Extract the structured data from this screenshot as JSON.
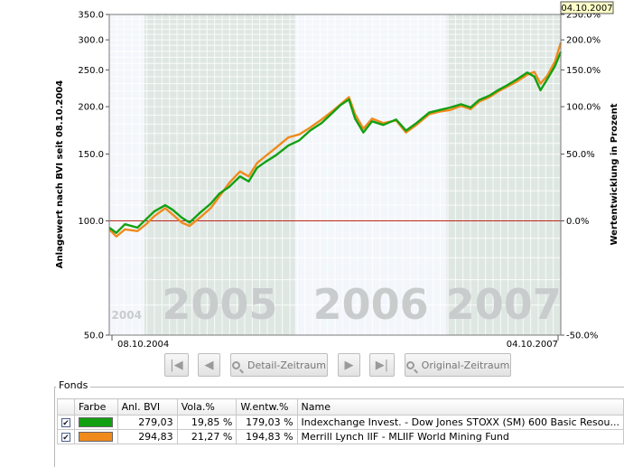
{
  "chart_data": {
    "type": "line",
    "y_scale": "log",
    "ylabel_left": "Anlagewert nach BVI seit 08.10.2004",
    "ylabel_right": "Wertentwicklung in Prozent",
    "left_ticks": [
      {
        "value": 350,
        "label": "350.0"
      },
      {
        "value": 300,
        "label": "300.0"
      },
      {
        "value": 250,
        "label": "250.0"
      },
      {
        "value": 200,
        "label": "200.0"
      },
      {
        "value": 150,
        "label": "150.0"
      },
      {
        "value": 100,
        "label": "100.0"
      },
      {
        "value": 50,
        "label": "50.0"
      }
    ],
    "right_ticks": [
      {
        "value": 350,
        "label": "250.0%"
      },
      {
        "value": 300,
        "label": "200.0%"
      },
      {
        "value": 250,
        "label": "150.0%"
      },
      {
        "value": 200,
        "label": "100.0%"
      },
      {
        "value": 150,
        "label": "50.0%"
      },
      {
        "value": 100,
        "label": "0.0%"
      },
      {
        "value": 50,
        "label": "-50.0%"
      }
    ],
    "ylim": [
      50,
      350
    ],
    "xlim": [
      "2004-10-08",
      "2007-10-04"
    ],
    "x_labels": [
      "08.10.2004",
      "04.10.2007"
    ],
    "cursor_label": "04.10.2007",
    "baseline": 100,
    "year_bands": [
      {
        "label": "2004",
        "start": "2004-10-08",
        "end": "2004-12-31",
        "shaded": false
      },
      {
        "label": "2005",
        "start": "2005-01-01",
        "end": "2005-12-31",
        "shaded": true
      },
      {
        "label": "2006",
        "start": "2006-01-01",
        "end": "2006-12-31",
        "shaded": false
      },
      {
        "label": "2007",
        "start": "2007-01-01",
        "end": "2007-10-04",
        "shaded": true
      }
    ],
    "series": [
      {
        "color": "#12a012",
        "x": [
          "2004-10-08",
          "2004-10-25",
          "2004-11-15",
          "2004-12-15",
          "2005-01-05",
          "2005-01-25",
          "2005-02-20",
          "2005-03-10",
          "2005-04-01",
          "2005-04-20",
          "2005-05-15",
          "2005-06-10",
          "2005-07-01",
          "2005-07-25",
          "2005-08-20",
          "2005-09-10",
          "2005-09-30",
          "2005-10-20",
          "2005-11-15",
          "2005-12-15",
          "2006-01-10",
          "2006-02-05",
          "2006-03-05",
          "2006-04-01",
          "2006-04-20",
          "2006-05-10",
          "2006-05-25",
          "2006-06-14",
          "2006-07-05",
          "2006-08-01",
          "2006-09-01",
          "2006-09-25",
          "2006-10-20",
          "2006-11-20",
          "2006-12-15",
          "2007-01-10",
          "2007-02-05",
          "2007-02-28",
          "2007-03-20",
          "2007-04-15",
          "2007-05-05",
          "2007-05-25",
          "2007-06-20",
          "2007-07-15",
          "2007-08-01",
          "2007-08-16",
          "2007-09-01",
          "2007-09-20",
          "2007-10-04"
        ],
        "y": [
          96,
          93,
          98,
          96,
          101,
          106,
          110,
          107,
          102,
          99,
          105,
          111,
          118,
          123,
          131,
          127,
          138,
          143,
          149,
          158,
          163,
          173,
          181,
          193,
          202,
          209,
          186,
          171,
          183,
          179,
          185,
          173,
          181,
          193,
          196,
          199,
          203,
          199,
          208,
          214,
          221,
          227,
          236,
          246,
          240,
          221,
          236,
          256,
          279
        ]
      },
      {
        "color": "#f08a1c",
        "x": [
          "2004-10-08",
          "2004-10-25",
          "2004-11-15",
          "2004-12-15",
          "2005-01-05",
          "2005-01-25",
          "2005-02-20",
          "2005-03-10",
          "2005-04-01",
          "2005-04-20",
          "2005-05-15",
          "2005-06-10",
          "2005-07-01",
          "2005-07-25",
          "2005-08-20",
          "2005-09-10",
          "2005-09-30",
          "2005-10-20",
          "2005-11-15",
          "2005-12-15",
          "2006-01-10",
          "2006-02-05",
          "2006-03-05",
          "2006-04-01",
          "2006-04-20",
          "2006-05-10",
          "2006-05-25",
          "2006-06-14",
          "2006-07-05",
          "2006-08-01",
          "2006-09-01",
          "2006-09-25",
          "2006-10-20",
          "2006-11-20",
          "2006-12-15",
          "2007-01-10",
          "2007-02-05",
          "2007-02-28",
          "2007-03-20",
          "2007-04-15",
          "2007-05-05",
          "2007-05-25",
          "2007-06-20",
          "2007-07-15",
          "2007-08-01",
          "2007-08-16",
          "2007-09-01",
          "2007-09-20",
          "2007-10-04"
        ],
        "y": [
          95,
          91,
          95,
          94,
          98,
          103,
          108,
          104,
          99,
          97,
          102,
          108,
          116,
          126,
          135,
          131,
          142,
          148,
          156,
          166,
          169,
          176,
          185,
          195,
          203,
          212,
          191,
          175,
          186,
          181,
          184,
          171,
          179,
          191,
          194,
          196,
          201,
          197,
          206,
          212,
          219,
          225,
          233,
          243,
          247,
          230,
          241,
          263,
          295
        ]
      }
    ]
  },
  "buttons": {
    "detail_label": "Detail-Zeitraum",
    "original_label": "Original-Zeitraum"
  },
  "fonds": {
    "title": "Fonds",
    "columns": [
      "Farbe",
      "Anl. BVI",
      "Vola.%",
      "W.entw.%",
      "Name"
    ],
    "rows": [
      {
        "checked": true,
        "color": "#12a012",
        "anl_bvi": "279,03",
        "vola": "19,85 %",
        "wentw": "179,03 %",
        "name": "Indexchange Invest. - Dow Jones STOXX (SM) 600 Basic Resou..."
      },
      {
        "checked": true,
        "color": "#f08a1c",
        "anl_bvi": "294,83",
        "vola": "21,27 %",
        "wentw": "194,83 %",
        "name": "Merrill Lynch IIF - MLIIF World Mining Fund"
      }
    ]
  }
}
